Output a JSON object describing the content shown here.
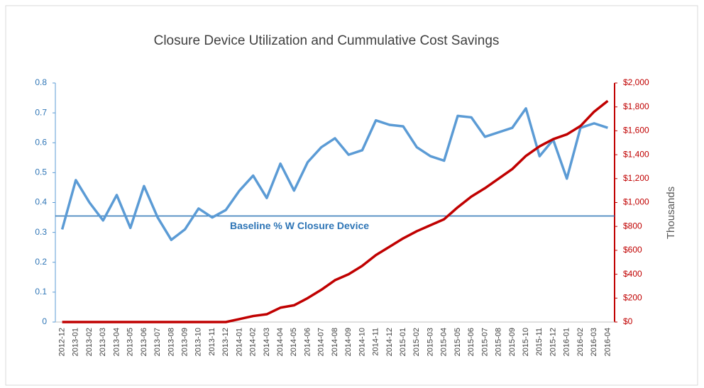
{
  "chart_data": {
    "type": "line",
    "title": "Closure Device Utilization and Cummulative Cost Savings",
    "y2_label": "Thousands",
    "categories": [
      "2012-12",
      "2013-01",
      "2013-02",
      "2013-03",
      "2013-04",
      "2013-05",
      "2013-06",
      "2013-07",
      "2013-08",
      "2013-09",
      "2013-10",
      "2013-11",
      "2013-12",
      "2014-01",
      "2014-02",
      "2014-03",
      "2014-04",
      "2014-05",
      "2014-06",
      "2014-07",
      "2014-08",
      "2014-09",
      "2014-10",
      "2014-11",
      "2014-12",
      "2015-01",
      "2015-02",
      "2015-03",
      "2015-04",
      "2015-05",
      "2015-06",
      "2015-07",
      "2015-08",
      "2015-09",
      "2015-10",
      "2015-11",
      "2015-12",
      "2016-01",
      "2016-02",
      "2016-03",
      "2016-04"
    ],
    "series": [
      {
        "color": "#5b9bd5",
        "axis": "y",
        "values": [
          0.31,
          0.475,
          0.4,
          0.34,
          0.425,
          0.315,
          0.455,
          0.35,
          0.275,
          0.31,
          0.38,
          0.35,
          0.375,
          0.44,
          0.49,
          0.415,
          0.53,
          0.44,
          0.535,
          0.585,
          0.615,
          0.56,
          0.575,
          0.675,
          0.66,
          0.655,
          0.585,
          0.555,
          0.54,
          0.69,
          0.685,
          0.62,
          0.635,
          0.65,
          0.715,
          0.555,
          0.61,
          0.48,
          0.65,
          0.665,
          0.65
        ]
      },
      {
        "color": "#c00000",
        "axis": "y2",
        "values": [
          0,
          0,
          0,
          0,
          0,
          0,
          0,
          0,
          0,
          0,
          0,
          0,
          0,
          25,
          50,
          65,
          120,
          140,
          200,
          270,
          350,
          400,
          470,
          560,
          630,
          700,
          760,
          810,
          860,
          960,
          1050,
          1120,
          1200,
          1280,
          1390,
          1470,
          1530,
          1570,
          1640,
          1760,
          1850
        ]
      }
    ],
    "baseline": {
      "label": "Baseline % W Closure Device",
      "value": 0.355,
      "color": "#2e75b6"
    },
    "ylim": [
      0,
      0.8
    ],
    "yticks": [
      0,
      0.1,
      0.2,
      0.3,
      0.4,
      0.5,
      0.6,
      0.7,
      0.8
    ],
    "y2lim": [
      0,
      2000
    ],
    "y2ticks": [
      {
        "value": 0,
        "label": "$0"
      },
      {
        "value": 200,
        "label": "$200"
      },
      {
        "value": 400,
        "label": "$400"
      },
      {
        "value": 600,
        "label": "$600"
      },
      {
        "value": 800,
        "label": "$800"
      },
      {
        "value": 1000,
        "label": "$1,000"
      },
      {
        "value": 1200,
        "label": "$1,200"
      },
      {
        "value": 1400,
        "label": "$1,400"
      },
      {
        "value": 1600,
        "label": "$1,600"
      },
      {
        "value": 1800,
        "label": "$1,800"
      },
      {
        "value": 2000,
        "label": "$2,000"
      }
    ],
    "grid": false
  }
}
